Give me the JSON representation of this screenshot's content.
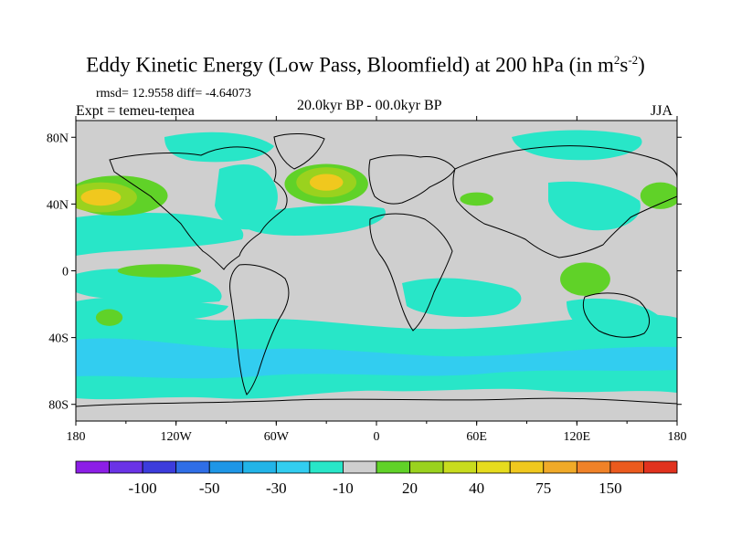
{
  "chart_data": {
    "type": "heatmap",
    "title_main": "Eddy Kinetic Energy (Low Pass, Bloomfield) at 200 hPa (in m",
    "title_sup1": "2",
    "title_s": "s",
    "title_sup2": "-2",
    "title_close": ")",
    "stats": "rmsd= 12.9558 diff= -4.64073",
    "experiment": "Expt = temeu-temea",
    "period": "20.0kyr BP - 00.0kyr BP",
    "season": "JJA",
    "x_ticks": [
      "180",
      "120W",
      "60W",
      "0",
      "60E",
      "120E",
      "180"
    ],
    "x_tick_values": [
      -180,
      -120,
      -60,
      0,
      60,
      120,
      180
    ],
    "y_ticks": [
      "80N",
      "40N",
      "0",
      "40S",
      "80S"
    ],
    "y_tick_values": [
      80,
      40,
      0,
      -40,
      -80
    ],
    "lon_range": [
      -180,
      180
    ],
    "lat_range": [
      -90,
      90
    ],
    "colorbar": {
      "colors": [
        "#8c1ee6",
        "#6a33e6",
        "#3c3cdc",
        "#2f6ee6",
        "#1e96e6",
        "#22b4e8",
        "#32cdf0",
        "#28e6c8",
        "#cfcfcf",
        "#60d228",
        "#9ad21e",
        "#c8dc1e",
        "#e6dc1e",
        "#f0c81e",
        "#f0aa28",
        "#f08228",
        "#eb5a1e",
        "#e1321e"
      ],
      "labels": [
        "-100",
        "-50",
        "-30",
        "-10",
        "20",
        "40",
        "75",
        "150"
      ],
      "label_boundary_index": [
        2,
        4,
        6,
        8,
        10,
        12,
        14,
        16
      ]
    },
    "anomaly_regions": [
      {
        "name": "n-pacific-storm",
        "lon": -155,
        "lat": 45,
        "rx": 30,
        "ry": 12,
        "level": "pos1"
      },
      {
        "name": "n-pacific-core",
        "lon": -165,
        "lat": 44,
        "rx": 12,
        "ry": 5,
        "level": "pos3"
      },
      {
        "name": "n-atlantic-storm",
        "lon": -30,
        "lat": 52,
        "rx": 25,
        "ry": 12,
        "level": "pos1"
      },
      {
        "name": "n-atlantic-core",
        "lon": -30,
        "lat": 53,
        "rx": 10,
        "ry": 5,
        "level": "pos3"
      },
      {
        "name": "trop-pacific-ribbon",
        "lon": -130,
        "lat": 0,
        "rx": 25,
        "ry": 4,
        "level": "pos1"
      },
      {
        "name": "s-pacific-patch",
        "lon": -160,
        "lat": -28,
        "rx": 8,
        "ry": 5,
        "level": "pos1"
      },
      {
        "name": "maritime-continent",
        "lon": 125,
        "lat": -5,
        "rx": 15,
        "ry": 10,
        "level": "pos1"
      },
      {
        "name": "asia-jet",
        "lon": 60,
        "lat": 43,
        "rx": 10,
        "ry": 4,
        "level": "pos1"
      },
      {
        "name": "pacific-east-asia",
        "lon": 170,
        "lat": 45,
        "rx": 12,
        "ry": 8,
        "level": "pos1"
      }
    ]
  }
}
